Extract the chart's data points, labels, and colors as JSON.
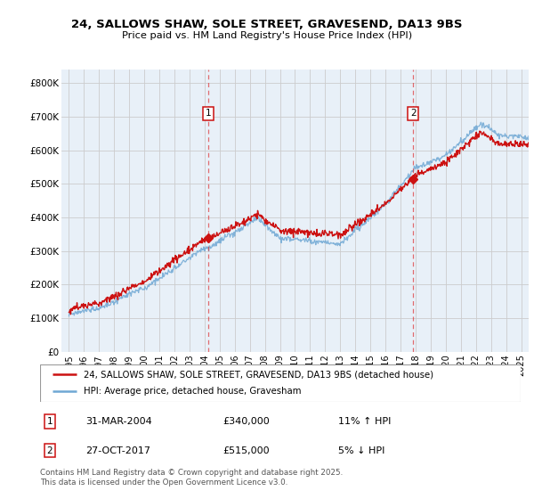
{
  "title_line1": "24, SALLOWS SHAW, SOLE STREET, GRAVESEND, DA13 9BS",
  "title_line2": "Price paid vs. HM Land Registry's House Price Index (HPI)",
  "ylabel_ticks": [
    "£0",
    "£100K",
    "£200K",
    "£300K",
    "£400K",
    "£500K",
    "£600K",
    "£700K",
    "£800K"
  ],
  "ytick_vals": [
    0,
    100000,
    200000,
    300000,
    400000,
    500000,
    600000,
    700000,
    800000
  ],
  "ylim": [
    0,
    840000
  ],
  "xlim_start": 1994.5,
  "xlim_end": 2025.5,
  "bg_color": "#e8f0f8",
  "hpi_color": "#6fa8d4",
  "sale_color": "#cc1111",
  "dashed_color": "#dd3333",
  "legend_sale_label": "24, SALLOWS SHAW, SOLE STREET, GRAVESEND, DA13 9BS (detached house)",
  "legend_hpi_label": "HPI: Average price, detached house, Gravesham",
  "sale1_x": 2004.25,
  "sale1_y": 340000,
  "sale1_label": "1",
  "sale1_date": "31-MAR-2004",
  "sale1_price": "£340,000",
  "sale1_hpi": "11% ↑ HPI",
  "sale2_x": 2017.83,
  "sale2_y": 515000,
  "sale2_label": "2",
  "sale2_date": "27-OCT-2017",
  "sale2_price": "£515,000",
  "sale2_hpi": "5% ↓ HPI",
  "footer": "Contains HM Land Registry data © Crown copyright and database right 2025.\nThis data is licensed under the Open Government Licence v3.0.",
  "xtick_years": [
    1995,
    1996,
    1997,
    1998,
    1999,
    2000,
    2001,
    2002,
    2003,
    2004,
    2005,
    2006,
    2007,
    2008,
    2009,
    2010,
    2011,
    2012,
    2013,
    2014,
    2015,
    2016,
    2017,
    2018,
    2019,
    2020,
    2021,
    2022,
    2023,
    2024,
    2025
  ]
}
